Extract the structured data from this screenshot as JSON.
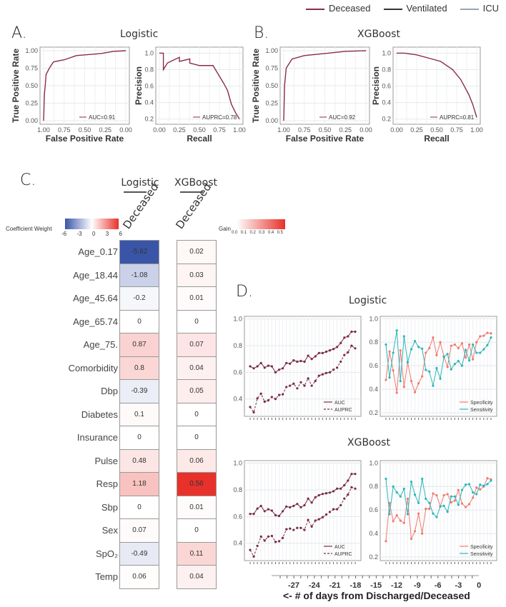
{
  "legend": {
    "items": [
      {
        "label": "Deceased",
        "color": "#8b2c4a"
      },
      {
        "label": "Ventilated",
        "color": "#333333"
      },
      {
        "label": "ICU",
        "color": "#8fa7b8"
      }
    ]
  },
  "panels": {
    "a_letter": "A.",
    "a_title": "Logistic",
    "b_letter": "B.",
    "b_title": "XGBoost",
    "c_letter": "C.",
    "d_letter": "D.",
    "d_title_logistic": "Logistic",
    "d_title_xgboost": "XGBoost",
    "d_xlabel": "<- # of days from Discharged/Deceased",
    "d_xticks": [
      "-27",
      "-24",
      "-21",
      "-18",
      "-15",
      "-12",
      "-9",
      "-6",
      "-3",
      "0"
    ]
  },
  "heatmap": {
    "logistic_header": "Logistic",
    "xgboost_header": "XGBoost",
    "column_label": "Deceased",
    "coef_legend_title": "Coefficient Weight",
    "coef_ticks": [
      "-6",
      "-3",
      "0",
      "3",
      "6"
    ],
    "gain_legend_title": "Gain",
    "gain_ticks": [
      "0.0",
      "0.1",
      "0.2",
      "0.3",
      "0.4",
      "0.5"
    ],
    "colors": {
      "negative": "#3a55a8",
      "neutral": "#ffffff",
      "positive": "#e8312a"
    },
    "rows": [
      {
        "feature": "Age_0.17",
        "logistic": "-5.62",
        "xgboost": "0.02"
      },
      {
        "feature": "Age_18.44",
        "logistic": "-1.08",
        "xgboost": "0.03"
      },
      {
        "feature": "Age_45.64",
        "logistic": "-0.2",
        "xgboost": "0.01"
      },
      {
        "feature": "Age_65.74",
        "logistic": "0",
        "xgboost": "0"
      },
      {
        "feature": "Age_75.",
        "logistic": "0.87",
        "xgboost": "0.07"
      },
      {
        "feature": "Comorbidity",
        "logistic": "0.8",
        "xgboost": "0.04"
      },
      {
        "feature": "Dbp",
        "logistic": "-0.39",
        "xgboost": "0.05"
      },
      {
        "feature": "Diabetes",
        "logistic": "0.1",
        "xgboost": "0"
      },
      {
        "feature": "Insurance",
        "logistic": "0",
        "xgboost": "0"
      },
      {
        "feature": "Pulse",
        "logistic": "0.48",
        "xgboost": "0.06"
      },
      {
        "feature": "Resp",
        "logistic": "1.18",
        "xgboost": "0.56"
      },
      {
        "feature": "Sbp",
        "logistic": "0",
        "xgboost": "0.01"
      },
      {
        "feature": "Sex",
        "logistic": "0.07",
        "xgboost": "0"
      },
      {
        "feature": "SpO₂",
        "logistic": "-0.49",
        "xgboost": "0.11"
      },
      {
        "feature": "Temp",
        "logistic": "0.06",
        "xgboost": "0.04"
      }
    ]
  },
  "chart_data": [
    {
      "id": "roc_logistic",
      "type": "line",
      "xlabel": "False Positive Rate",
      "ylabel": "True Positive Rate",
      "xlim": [
        1.0,
        0.0
      ],
      "ylim": [
        0,
        1
      ],
      "grid": true,
      "xticks": [
        "1.00",
        "0.75",
        "0.50",
        "0.25",
        "0.00"
      ],
      "yticks": [
        "0.00",
        "0.25",
        "0.50",
        "0.75",
        "1.00"
      ],
      "annotation": "AUC=0.91",
      "color": "#8b2c4a",
      "x": [
        1.0,
        0.99,
        0.98,
        0.97,
        0.93,
        0.88,
        0.75,
        0.6,
        0.3,
        0.15,
        0.0
      ],
      "y": [
        0.0,
        0.38,
        0.5,
        0.66,
        0.75,
        0.84,
        0.87,
        0.93,
        0.96,
        0.99,
        1.0
      ]
    },
    {
      "id": "pr_logistic",
      "type": "line",
      "xlabel": "Recall",
      "ylabel": "Precision",
      "xlim": [
        0,
        1
      ],
      "ylim": [
        0.18,
        1.03
      ],
      "grid": true,
      "xticks": [
        "0.00",
        "0.25",
        "0.50",
        "0.75",
        "1.00"
      ],
      "yticks": [
        "0.2",
        "0.4",
        "0.6",
        "0.8",
        "1.0"
      ],
      "annotation": "AUPRC=0.78",
      "color": "#8b2c4a",
      "x": [
        0,
        0.05,
        0.05,
        0.1,
        0.25,
        0.25,
        0.38,
        0.38,
        0.5,
        0.67,
        0.75,
        0.8,
        0.85,
        0.9,
        0.95,
        1.0
      ],
      "y": [
        1.0,
        1.0,
        0.8,
        0.88,
        0.95,
        0.9,
        0.93,
        0.88,
        0.85,
        0.85,
        0.72,
        0.64,
        0.55,
        0.38,
        0.28,
        0.2
      ]
    },
    {
      "id": "roc_xgboost",
      "type": "line",
      "xlabel": "False Positive Rate",
      "ylabel": "True Positive Rate",
      "xlim": [
        1.0,
        0.0
      ],
      "ylim": [
        0,
        1
      ],
      "grid": true,
      "xticks": [
        "1.00",
        "0.75",
        "0.50",
        "0.25",
        "0.00"
      ],
      "yticks": [
        "0.00",
        "0.25",
        "0.50",
        "0.75",
        "1.00"
      ],
      "annotation": "AUC=0.92",
      "color": "#8b2c4a",
      "x": [
        1.0,
        0.99,
        0.97,
        0.9,
        0.75,
        0.5,
        0.25,
        0.0
      ],
      "y": [
        0.0,
        0.5,
        0.75,
        0.88,
        0.93,
        0.96,
        0.99,
        1.0
      ]
    },
    {
      "id": "pr_xgboost",
      "type": "line",
      "xlabel": "Recall",
      "ylabel": "Precision",
      "xlim": [
        0,
        1
      ],
      "ylim": [
        0.18,
        1.03
      ],
      "grid": true,
      "xticks": [
        "0.00",
        "0.25",
        "0.50",
        "0.75",
        "1.00"
      ],
      "yticks": [
        "0.2",
        "0.4",
        "0.6",
        "0.8",
        "1.0"
      ],
      "annotation": "AUPRC=0.81",
      "color": "#8b2c4a",
      "x": [
        0,
        0.1,
        0.25,
        0.4,
        0.55,
        0.7,
        0.8,
        0.9,
        0.95,
        1.0
      ],
      "y": [
        1.0,
        1.0,
        0.98,
        0.94,
        0.9,
        0.8,
        0.68,
        0.5,
        0.38,
        0.22
      ]
    },
    {
      "id": "d_logistic_auc",
      "type": "line",
      "ylim": [
        0.27,
        1.02
      ],
      "yticks": [
        "0.4",
        "0.6",
        "0.8",
        "1.0"
      ],
      "grid": true,
      "legend": "bottom-right",
      "series": [
        {
          "name": "AUC",
          "style": "solid",
          "color": "#7a2a44",
          "values": [
            0.645,
            0.63,
            0.645,
            0.67,
            0.635,
            0.65,
            0.645,
            0.6,
            0.62,
            0.63,
            0.67,
            0.665,
            0.69,
            0.68,
            0.685,
            0.68,
            0.725,
            0.7,
            0.72,
            0.745,
            0.745,
            0.755,
            0.765,
            0.775,
            0.79,
            0.82,
            0.86,
            0.87,
            0.905,
            0.905
          ]
        },
        {
          "name": "AUPRC",
          "style": "dashed",
          "color": "#7a2a44",
          "values": [
            0.34,
            0.3,
            0.405,
            0.44,
            0.38,
            0.39,
            0.415,
            0.4,
            0.43,
            0.435,
            0.49,
            0.5,
            0.515,
            0.48,
            0.525,
            0.5,
            0.555,
            0.5,
            0.535,
            0.575,
            0.585,
            0.595,
            0.6,
            0.62,
            0.635,
            0.68,
            0.73,
            0.75,
            0.8,
            0.78
          ]
        }
      ]
    },
    {
      "id": "d_logistic_spec_sens",
      "type": "line",
      "ylim": [
        0.17,
        1.02
      ],
      "yticks": [
        "0.2",
        "0.4",
        "0.6",
        "0.8",
        "1.0"
      ],
      "grid": true,
      "legend": "bottom-right",
      "series": [
        {
          "name": "Specificity",
          "style": "solid",
          "color": "#f07a6e",
          "values": [
            0.48,
            0.72,
            0.56,
            0.37,
            0.73,
            0.42,
            0.63,
            0.47,
            0.375,
            0.45,
            0.51,
            0.71,
            0.75,
            0.84,
            0.69,
            0.8,
            0.68,
            0.59,
            0.77,
            0.78,
            0.75,
            0.79,
            0.67,
            0.78,
            0.655,
            0.8,
            0.85,
            0.855,
            0.88,
            0.875
          ]
        },
        {
          "name": "Sensitivity",
          "style": "solid",
          "color": "#2bb5b8",
          "values": [
            0.78,
            0.5,
            0.71,
            0.9,
            0.47,
            0.85,
            0.63,
            0.74,
            0.81,
            0.76,
            0.745,
            0.565,
            0.55,
            0.43,
            0.58,
            0.49,
            0.675,
            0.7,
            0.57,
            0.615,
            0.64,
            0.6,
            0.735,
            0.645,
            0.78,
            0.71,
            0.71,
            0.74,
            0.775,
            0.84
          ]
        }
      ]
    },
    {
      "id": "d_xgboost_auc",
      "type": "line",
      "ylim": [
        0.27,
        1.02
      ],
      "yticks": [
        "0.4",
        "0.6",
        "0.8",
        "1.0"
      ],
      "grid": true,
      "legend": "bottom-right",
      "series": [
        {
          "name": "AUC",
          "style": "solid",
          "color": "#7a2a44",
          "values": [
            0.62,
            0.62,
            0.66,
            0.68,
            0.64,
            0.655,
            0.645,
            0.61,
            0.605,
            0.64,
            0.675,
            0.67,
            0.68,
            0.695,
            0.67,
            0.685,
            0.735,
            0.705,
            0.745,
            0.76,
            0.77,
            0.775,
            0.78,
            0.79,
            0.81,
            0.81,
            0.835,
            0.87,
            0.92,
            0.92
          ]
        },
        {
          "name": "AUPRC",
          "style": "dashed",
          "color": "#7a2a44",
          "values": [
            0.35,
            0.3,
            0.38,
            0.45,
            0.42,
            0.45,
            0.455,
            0.41,
            0.415,
            0.44,
            0.505,
            0.51,
            0.5,
            0.515,
            0.515,
            0.5,
            0.575,
            0.525,
            0.57,
            0.58,
            0.595,
            0.615,
            0.635,
            0.655,
            0.655,
            0.685,
            0.735,
            0.765,
            0.82,
            0.81
          ]
        }
      ]
    },
    {
      "id": "d_xgboost_spec_sens",
      "type": "line",
      "ylim": [
        0.17,
        1.02
      ],
      "yticks": [
        "0.2",
        "0.4",
        "0.6",
        "0.8",
        "1.0"
      ],
      "grid": true,
      "legend": "bottom-right",
      "series": [
        {
          "name": "Specificity",
          "style": "solid",
          "color": "#f07a6e",
          "values": [
            0.335,
            0.66,
            0.505,
            0.555,
            0.51,
            0.49,
            0.695,
            0.355,
            0.42,
            0.57,
            0.4,
            0.61,
            0.61,
            0.74,
            0.725,
            0.63,
            0.725,
            0.735,
            0.665,
            0.68,
            0.77,
            0.655,
            0.625,
            0.65,
            0.705,
            0.79,
            0.775,
            0.8,
            0.87,
            0.86
          ]
        },
        {
          "name": "Sensitivity",
          "style": "solid",
          "color": "#2bb5b8",
          "values": [
            0.865,
            0.565,
            0.8,
            0.75,
            0.715,
            0.78,
            0.565,
            0.84,
            0.73,
            0.66,
            0.865,
            0.695,
            0.66,
            0.57,
            0.54,
            0.63,
            0.635,
            0.585,
            0.715,
            0.715,
            0.645,
            0.77,
            0.815,
            0.82,
            0.75,
            0.735,
            0.815,
            0.805,
            0.82,
            0.85
          ]
        }
      ]
    }
  ]
}
